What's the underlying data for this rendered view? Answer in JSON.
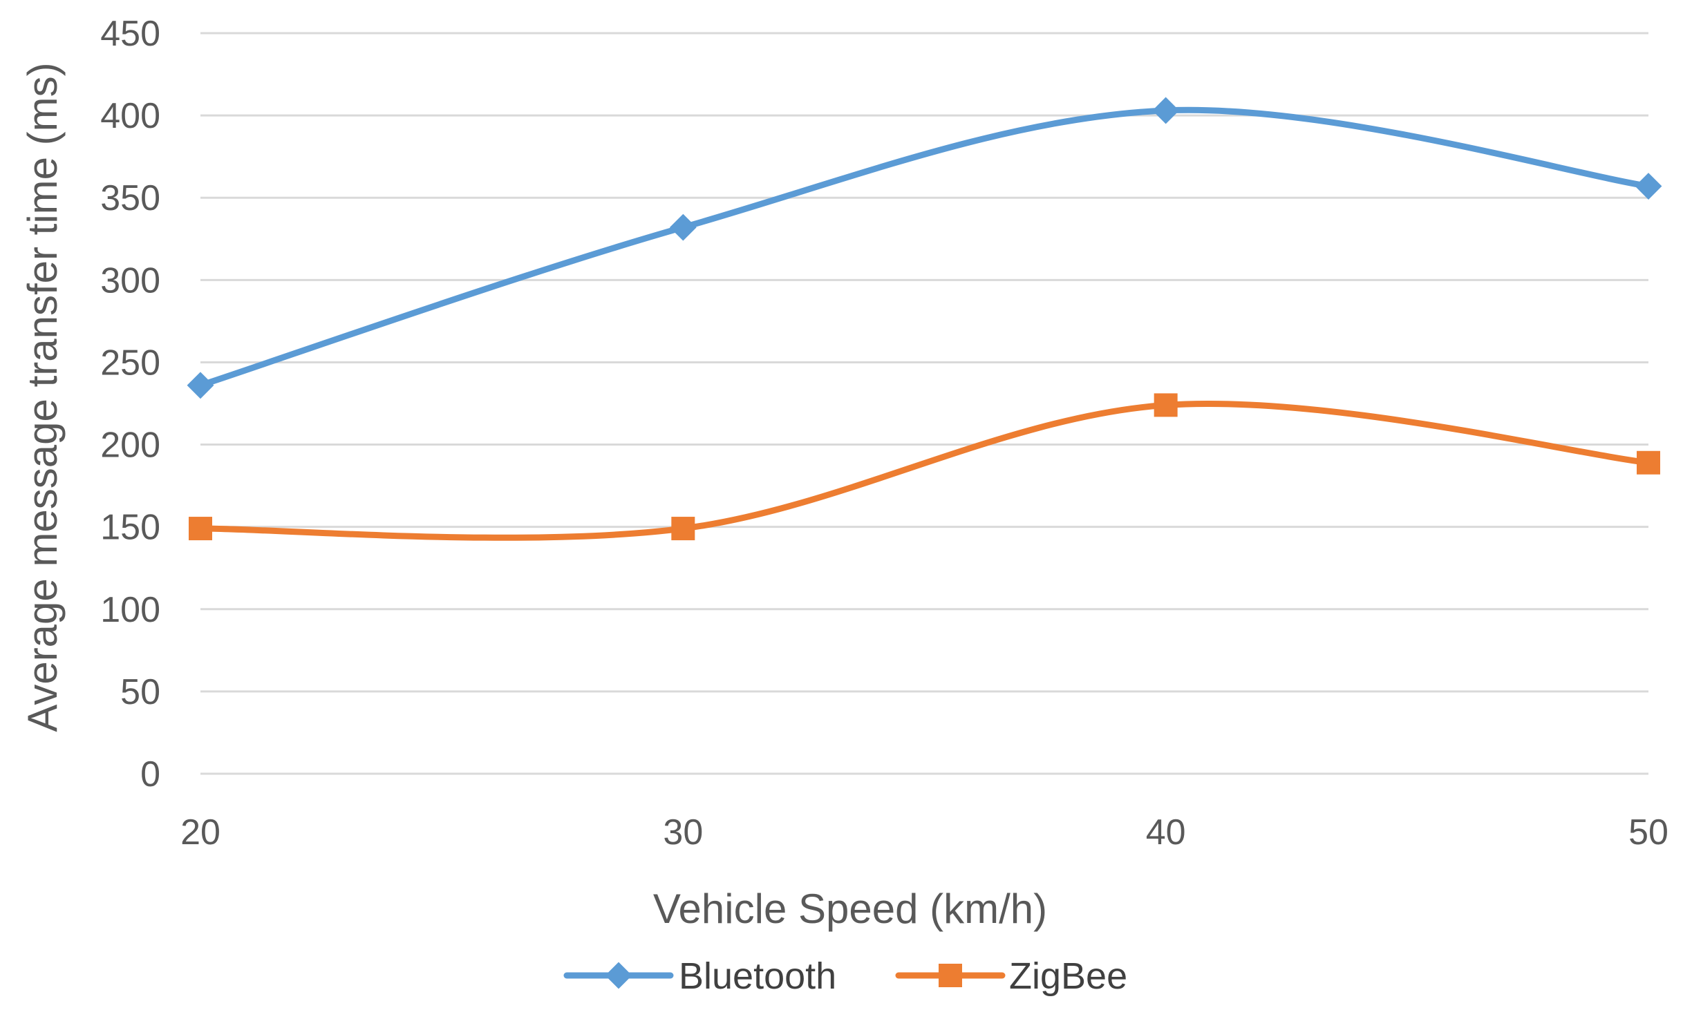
{
  "chart_data": {
    "type": "line",
    "title": "",
    "xlabel": "Vehicle Speed (km/h)",
    "ylabel": "Average message transfer time (ms)",
    "x": [
      20,
      30,
      40,
      50
    ],
    "xticks": [
      "20",
      "30",
      "40",
      "50"
    ],
    "ylim": [
      0,
      450
    ],
    "yticks": [
      "0",
      "50",
      "100",
      "150",
      "200",
      "250",
      "300",
      "350",
      "400",
      "450"
    ],
    "grid": true,
    "smooth": true,
    "legend_position": "bottom",
    "series": [
      {
        "name": "Bluetooth",
        "values": [
          236,
          332,
          403,
          357
        ],
        "color": "#5b9bd5",
        "marker": "diamond"
      },
      {
        "name": "ZigBee",
        "values": [
          149,
          149,
          224,
          189
        ],
        "color": "#ed7d31",
        "marker": "square"
      }
    ]
  }
}
